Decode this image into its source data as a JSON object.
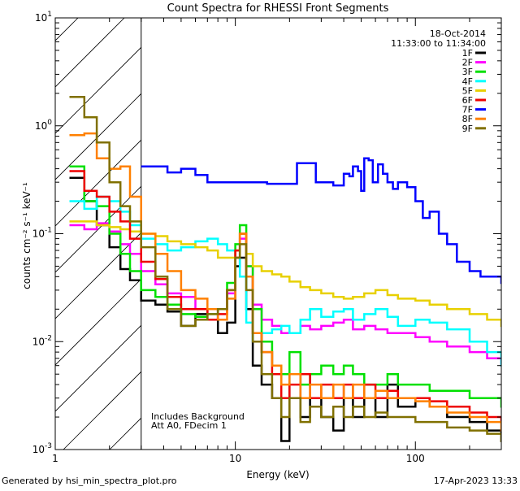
{
  "chart_data": {
    "type": "line",
    "title": "Count Spectra for RHESSI Front Segments",
    "xlabel": "Energy (keV)",
    "ylabel": "counts cm⁻² s⁻¹ keV⁻¹",
    "x_scale": "log",
    "y_scale": "log",
    "xlim": [
      1,
      300
    ],
    "ylim": [
      0.001,
      10
    ],
    "x_ticks": [
      {
        "value": 1,
        "label": "1"
      },
      {
        "value": 10,
        "label": "10"
      },
      {
        "value": 100,
        "label": "100"
      }
    ],
    "y_ticks": [
      {
        "value": 0.001,
        "base": "10",
        "exp": "-3"
      },
      {
        "value": 0.01,
        "base": "10",
        "exp": "-2"
      },
      {
        "value": 0.1,
        "base": "10",
        "exp": "-1"
      },
      {
        "value": 1,
        "base": "10",
        "exp": "0"
      },
      {
        "value": 10,
        "base": "10",
        "exp": "1"
      }
    ],
    "hatched_region_max_energy": 3,
    "date": "18-Oct-2014",
    "time_range": "11:33:00 to 11:34:00",
    "annotation_line1": "Includes Background",
    "annotation_line2": "Att A0, FDecim 1",
    "legend_position": "top-right",
    "series": [
      {
        "name": "1F",
        "color": "#000000",
        "x": [
          1.2,
          1.45,
          1.7,
          2.0,
          2.3,
          2.6,
          3.0,
          3.6,
          4.2,
          5,
          6,
          7,
          8,
          9,
          10,
          10.6,
          11.5,
          12.5,
          14,
          16,
          18,
          20,
          23,
          26,
          30,
          35,
          40,
          45,
          52,
          60,
          70,
          80,
          100,
          120,
          150,
          200,
          250,
          300
        ],
        "y": [
          0.33,
          0.2,
          0.12,
          0.075,
          0.047,
          0.037,
          0.024,
          0.022,
          0.019,
          0.014,
          0.018,
          0.02,
          0.012,
          0.015,
          0.05,
          0.06,
          0.02,
          0.006,
          0.004,
          0.003,
          0.0012,
          0.005,
          0.002,
          0.003,
          0.002,
          0.0015,
          0.003,
          0.002,
          0.003,
          0.002,
          0.004,
          0.0025,
          0.003,
          0.0025,
          0.002,
          0.0018,
          0.0015,
          0.0012
        ]
      },
      {
        "name": "2F",
        "color": "#ff00ff",
        "x": [
          1.2,
          1.45,
          1.7,
          2.0,
          2.3,
          2.6,
          3.0,
          3.6,
          4.2,
          5,
          6,
          7,
          8,
          9,
          10,
          10.6,
          11.5,
          12.5,
          14,
          16,
          18,
          20,
          23,
          26,
          30,
          35,
          40,
          45,
          52,
          60,
          70,
          80,
          100,
          120,
          150,
          200,
          250,
          300
        ],
        "y": [
          0.12,
          0.11,
          0.125,
          0.105,
          0.08,
          0.065,
          0.045,
          0.034,
          0.028,
          0.026,
          0.02,
          0.016,
          0.02,
          0.028,
          0.06,
          0.09,
          0.05,
          0.022,
          0.016,
          0.014,
          0.012,
          0.012,
          0.014,
          0.013,
          0.014,
          0.015,
          0.016,
          0.013,
          0.014,
          0.013,
          0.012,
          0.012,
          0.011,
          0.01,
          0.009,
          0.008,
          0.007,
          0.006
        ]
      },
      {
        "name": "3F",
        "color": "#00e000",
        "x": [
          1.2,
          1.45,
          1.7,
          2.0,
          2.3,
          2.6,
          3.0,
          3.6,
          4.2,
          5,
          6,
          7,
          8,
          9,
          10,
          10.6,
          11.5,
          12.5,
          14,
          16,
          18,
          20,
          23,
          26,
          30,
          35,
          40,
          45,
          52,
          60,
          70,
          80,
          100,
          120,
          150,
          200,
          250,
          300
        ],
        "y": [
          0.42,
          0.2,
          0.18,
          0.1,
          0.065,
          0.045,
          0.03,
          0.026,
          0.022,
          0.018,
          0.017,
          0.018,
          0.02,
          0.035,
          0.08,
          0.12,
          0.05,
          0.02,
          0.01,
          0.006,
          0.005,
          0.008,
          0.004,
          0.005,
          0.006,
          0.005,
          0.006,
          0.005,
          0.004,
          0.004,
          0.005,
          0.004,
          0.004,
          0.0035,
          0.0035,
          0.003,
          0.003,
          0.0025
        ]
      },
      {
        "name": "4F",
        "color": "#00ffff",
        "x": [
          1.2,
          1.45,
          1.7,
          2.0,
          2.3,
          2.6,
          3.0,
          3.6,
          4.2,
          5,
          6,
          7,
          8,
          9,
          10,
          10.6,
          11.5,
          12.5,
          14,
          16,
          18,
          20,
          23,
          26,
          30,
          35,
          40,
          45,
          52,
          60,
          70,
          80,
          100,
          120,
          150,
          200,
          250,
          300
        ],
        "y": [
          0.2,
          0.17,
          0.22,
          0.2,
          0.16,
          0.12,
          0.09,
          0.08,
          0.07,
          0.075,
          0.085,
          0.09,
          0.08,
          0.07,
          0.06,
          0.04,
          0.015,
          0.01,
          0.012,
          0.013,
          0.014,
          0.012,
          0.016,
          0.02,
          0.017,
          0.019,
          0.02,
          0.016,
          0.018,
          0.02,
          0.017,
          0.014,
          0.016,
          0.015,
          0.013,
          0.01,
          0.008,
          0.006
        ]
      },
      {
        "name": "5F",
        "color": "#e8d000",
        "x": [
          1.2,
          1.45,
          1.7,
          2.0,
          2.3,
          2.6,
          3.0,
          3.6,
          4.2,
          5,
          6,
          7,
          8,
          9,
          10,
          10.6,
          11.5,
          12.5,
          14,
          16,
          18,
          20,
          23,
          26,
          30,
          35,
          40,
          45,
          52,
          60,
          70,
          80,
          100,
          120,
          150,
          200,
          250,
          300
        ],
        "y": [
          0.13,
          0.13,
          0.12,
          0.115,
          0.11,
          0.105,
          0.1,
          0.095,
          0.085,
          0.08,
          0.075,
          0.07,
          0.06,
          0.06,
          0.07,
          0.1,
          0.065,
          0.05,
          0.045,
          0.042,
          0.04,
          0.036,
          0.032,
          0.03,
          0.028,
          0.026,
          0.025,
          0.026,
          0.028,
          0.03,
          0.027,
          0.025,
          0.024,
          0.022,
          0.02,
          0.018,
          0.016,
          0.014
        ]
      },
      {
        "name": "6F",
        "color": "#ee0000",
        "x": [
          1.2,
          1.45,
          1.7,
          2.0,
          2.3,
          2.6,
          3.0,
          3.6,
          4.2,
          5,
          6,
          7,
          8,
          9,
          10,
          10.6,
          11.5,
          12.5,
          14,
          16,
          18,
          20,
          23,
          26,
          30,
          35,
          40,
          45,
          52,
          60,
          70,
          80,
          100,
          120,
          150,
          200,
          250,
          300
        ],
        "y": [
          0.38,
          0.25,
          0.22,
          0.16,
          0.13,
          0.09,
          0.055,
          0.038,
          0.026,
          0.02,
          0.02,
          0.016,
          0.018,
          0.03,
          0.07,
          0.1,
          0.04,
          0.012,
          0.008,
          0.005,
          0.003,
          0.004,
          0.005,
          0.003,
          0.004,
          0.003,
          0.004,
          0.003,
          0.004,
          0.003,
          0.0035,
          0.003,
          0.003,
          0.0028,
          0.0025,
          0.0022,
          0.002,
          0.0018
        ]
      },
      {
        "name": "7F",
        "color": "#0000ff",
        "x": [
          3.0,
          4.2,
          5,
          6,
          7,
          9,
          15,
          22,
          28,
          35,
          40,
          43,
          45,
          48,
          50,
          52,
          55,
          58,
          62,
          66,
          70,
          75,
          80,
          90,
          100,
          110,
          120,
          135,
          150,
          170,
          200,
          230,
          260,
          300
        ],
        "y": [
          0.42,
          0.37,
          0.4,
          0.35,
          0.3,
          0.3,
          0.29,
          0.45,
          0.3,
          0.28,
          0.36,
          0.34,
          0.42,
          0.38,
          0.25,
          0.5,
          0.48,
          0.3,
          0.44,
          0.36,
          0.3,
          0.26,
          0.3,
          0.27,
          0.2,
          0.14,
          0.16,
          0.1,
          0.08,
          0.055,
          0.045,
          0.04,
          0.04,
          0.035
        ]
      },
      {
        "name": "8F",
        "color": "#ff8000",
        "x": [
          1.2,
          1.45,
          1.7,
          2.0,
          2.3,
          2.6,
          3.0,
          3.6,
          4.2,
          5,
          6,
          7,
          8,
          9,
          10,
          10.6,
          11.5,
          12.5,
          14,
          16,
          18,
          20,
          23,
          26,
          30,
          35,
          40,
          45,
          52,
          60,
          70,
          80,
          100,
          120,
          150,
          200,
          250,
          300
        ],
        "y": [
          0.82,
          0.85,
          0.5,
          0.4,
          0.42,
          0.22,
          0.1,
          0.065,
          0.045,
          0.03,
          0.025,
          0.02,
          0.016,
          0.025,
          0.06,
          0.1,
          0.04,
          0.012,
          0.008,
          0.006,
          0.004,
          0.005,
          0.003,
          0.004,
          0.003,
          0.004,
          0.003,
          0.004,
          0.003,
          0.0035,
          0.003,
          0.003,
          0.0028,
          0.0025,
          0.0022,
          0.002,
          0.0018,
          0.0015
        ]
      },
      {
        "name": "9F",
        "color": "#807000",
        "x": [
          1.2,
          1.45,
          1.7,
          2.0,
          2.3,
          2.6,
          3.0,
          3.6,
          4.2,
          5,
          6,
          7,
          8,
          9,
          10,
          10.6,
          11.5,
          12.5,
          14,
          16,
          18,
          20,
          23,
          26,
          30,
          35,
          40,
          45,
          52,
          60,
          70,
          80,
          100,
          120,
          150,
          200,
          250,
          300
        ],
        "y": [
          1.85,
          1.2,
          0.7,
          0.3,
          0.18,
          0.13,
          0.075,
          0.04,
          0.02,
          0.014,
          0.016,
          0.018,
          0.02,
          0.03,
          0.06,
          0.08,
          0.03,
          0.01,
          0.005,
          0.003,
          0.002,
          0.003,
          0.0018,
          0.0025,
          0.002,
          0.0025,
          0.002,
          0.0025,
          0.002,
          0.0022,
          0.002,
          0.002,
          0.0018,
          0.0018,
          0.0016,
          0.0015,
          0.0014,
          0.0012
        ]
      }
    ]
  },
  "footer": {
    "generator": "Generated by hsi_min_spectra_plot.pro",
    "timestamp": "17-Apr-2023 13:33"
  }
}
